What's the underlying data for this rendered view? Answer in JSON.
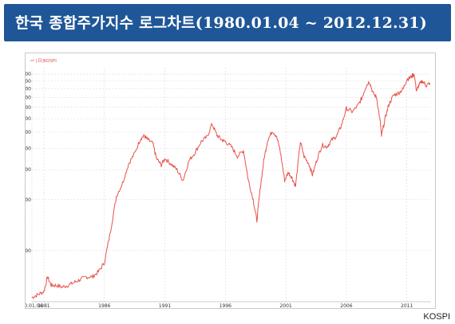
{
  "header": {
    "title": "한국 종합주가지수 로그차트(1980.01.04 ~ 2012.12.31)"
  },
  "source_label": "KOSPI",
  "chart_data": {
    "type": "line",
    "scale": "log",
    "title": "한국 종합주가지수 로그차트(1980.01.04 ~ 2012.12.31)",
    "legend": {
      "label": "[日]KOSPI",
      "placement": "top-left"
    },
    "y_ticks": [
      200,
      400,
      600,
      800,
      1000,
      1200,
      1400,
      1600,
      1800,
      2000,
      2200
    ],
    "y_tick_labels": [
      "200",
      "400",
      "600",
      "800",
      "1,000",
      "1,200",
      "1,400",
      "1,600",
      "1,800",
      "2,000",
      "2,200"
    ],
    "ylim": [
      100,
      2400
    ],
    "x_ticks": [
      1980.01,
      1981,
      1986,
      1991,
      1996,
      2001,
      2006,
      2011
    ],
    "x_tick_labels": [
      "80.01.04",
      "1981",
      "1986",
      "1991",
      "1996",
      "2001",
      "2006",
      "2011"
    ],
    "xlim": [
      1980.01,
      2013.0
    ],
    "grid": true,
    "color": "#e8524a",
    "series": [
      {
        "name": "[日]KOSPI",
        "x": [
          1980.0,
          1980.5,
          1981.0,
          1981.3,
          1981.6,
          1982.0,
          1982.5,
          1983.0,
          1983.5,
          1984.0,
          1984.5,
          1985.0,
          1985.5,
          1986.0,
          1986.5,
          1987.0,
          1987.5,
          1988.0,
          1988.5,
          1989.0,
          1989.3,
          1989.6,
          1990.0,
          1990.3,
          1990.7,
          1991.0,
          1991.5,
          1992.0,
          1992.5,
          1993.0,
          1993.5,
          1994.0,
          1994.5,
          1994.9,
          1995.3,
          1995.7,
          1996.0,
          1996.5,
          1997.0,
          1997.5,
          1997.9,
          1998.3,
          1998.6,
          1998.9,
          1999.2,
          1999.5,
          1999.9,
          2000.2,
          2000.5,
          2000.9,
          2001.2,
          2001.5,
          2001.8,
          2002.2,
          2002.5,
          2002.9,
          2003.2,
          2003.6,
          2004.0,
          2004.4,
          2004.8,
          2005.2,
          2005.6,
          2006.0,
          2006.5,
          2007.0,
          2007.3,
          2007.6,
          2007.9,
          2008.2,
          2008.5,
          2008.8,
          2008.9,
          2009.2,
          2009.5,
          2009.9,
          2010.3,
          2010.7,
          2011.0,
          2011.3,
          2011.6,
          2011.8,
          2012.0,
          2012.3,
          2012.6,
          2012.9
        ],
        "values": [
          106,
          110,
          115,
          140,
          125,
          125,
          122,
          125,
          130,
          135,
          140,
          140,
          150,
          170,
          260,
          420,
          500,
          650,
          750,
          920,
          950,
          900,
          860,
          700,
          640,
          700,
          650,
          600,
          520,
          680,
          760,
          880,
          940,
          1120,
          960,
          900,
          880,
          820,
          720,
          780,
          520,
          400,
          300,
          480,
          700,
          900,
          1020,
          950,
          800,
          520,
          580,
          540,
          480,
          880,
          720,
          650,
          560,
          700,
          840,
          820,
          900,
          950,
          1100,
          1380,
          1320,
          1450,
          1600,
          1850,
          2000,
          1700,
          1600,
          1150,
          950,
          1200,
          1450,
          1650,
          1700,
          1800,
          2050,
          2100,
          2200,
          1750,
          1900,
          2000,
          1880,
          1950
        ]
      }
    ]
  }
}
